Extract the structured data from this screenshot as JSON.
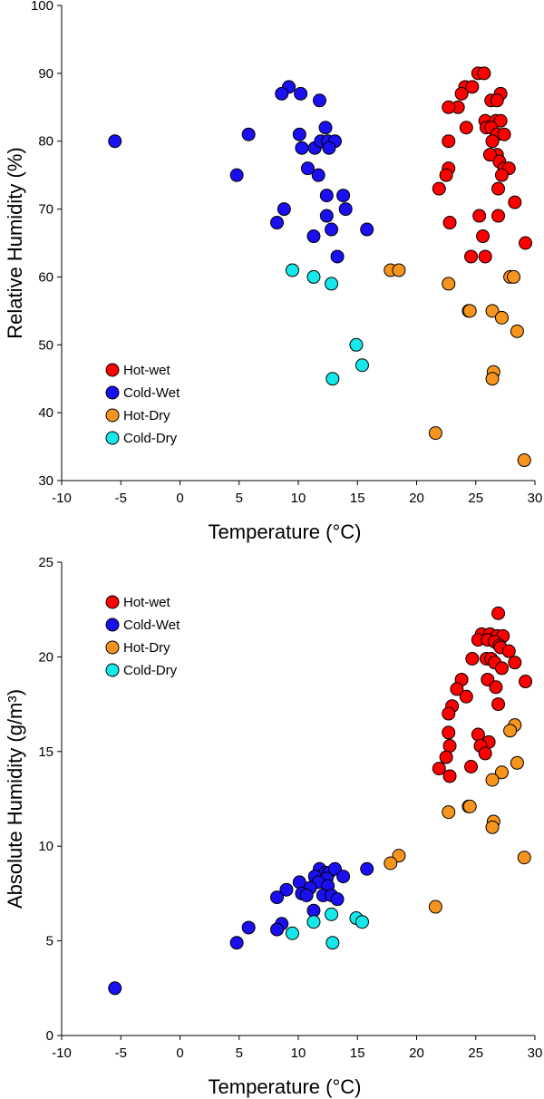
{
  "colors": {
    "Hot-wet": "#ff0000",
    "Cold-Wet": "#1a0ff0",
    "Hot-Dry": "#f7941d",
    "Cold-Dry": "#14e8ea"
  },
  "chart_data": [
    {
      "type": "scatter",
      "xlabel": "Temperature (°C)",
      "ylabel": "Relative Humidity (%)",
      "xlim": [
        -10,
        30
      ],
      "ylim": [
        30,
        100
      ],
      "xticks": [
        -10,
        -5,
        0,
        5,
        10,
        15,
        20,
        25,
        30
      ],
      "yticks": [
        30,
        40,
        50,
        60,
        70,
        80,
        90,
        100
      ],
      "legend_position": "bottom-left",
      "series": [
        {
          "name": "Hot-wet",
          "points": [
            [
              25.2,
              90
            ],
            [
              25.7,
              90
            ],
            [
              24.1,
              88
            ],
            [
              24.7,
              88
            ],
            [
              23.8,
              87
            ],
            [
              27.1,
              87
            ],
            [
              23.5,
              85
            ],
            [
              22.7,
              85
            ],
            [
              26.3,
              86
            ],
            [
              26.8,
              86
            ],
            [
              25.8,
              83
            ],
            [
              26.7,
              83
            ],
            [
              27.1,
              83
            ],
            [
              24.2,
              82
            ],
            [
              25.9,
              82
            ],
            [
              26.3,
              82
            ],
            [
              26.8,
              81
            ],
            [
              27.4,
              81
            ],
            [
              26.4,
              80
            ],
            [
              22.7,
              80
            ],
            [
              26.8,
              78
            ],
            [
              26.2,
              78
            ],
            [
              27,
              77
            ],
            [
              27.4,
              76
            ],
            [
              27.8,
              76
            ],
            [
              22.7,
              76
            ],
            [
              22.5,
              75
            ],
            [
              27.2,
              75
            ],
            [
              21.9,
              73
            ],
            [
              26.9,
              73
            ],
            [
              28.3,
              71
            ],
            [
              25.3,
              69
            ],
            [
              26.9,
              69
            ],
            [
              22.8,
              68
            ],
            [
              25.6,
              66
            ],
            [
              29.2,
              65
            ],
            [
              24.6,
              63
            ],
            [
              25.8,
              63
            ]
          ]
        },
        {
          "name": "Cold-Wet",
          "points": [
            [
              -5.5,
              80
            ],
            [
              9.2,
              88
            ],
            [
              8.6,
              87
            ],
            [
              10.2,
              87
            ],
            [
              11.8,
              86
            ],
            [
              5.8,
              81
            ],
            [
              10.1,
              81
            ],
            [
              12.3,
              82
            ],
            [
              11.4,
              79
            ],
            [
              11.9,
              80
            ],
            [
              12.5,
              80
            ],
            [
              13.1,
              80
            ],
            [
              10.3,
              79
            ],
            [
              12.6,
              79
            ],
            [
              10.8,
              76
            ],
            [
              11.7,
              75
            ],
            [
              4.8,
              75
            ],
            [
              12.4,
              72
            ],
            [
              13.8,
              72
            ],
            [
              8.8,
              70
            ],
            [
              14,
              70
            ],
            [
              12.4,
              69
            ],
            [
              8.2,
              68
            ],
            [
              12.8,
              67
            ],
            [
              15.8,
              67
            ],
            [
              11.3,
              66
            ],
            [
              13.3,
              63
            ]
          ]
        },
        {
          "name": "Hot-Dry",
          "points": [
            [
              17.8,
              61
            ],
            [
              18.5,
              61
            ],
            [
              22.7,
              59
            ],
            [
              27.9,
              60
            ],
            [
              28.2,
              60
            ],
            [
              24.4,
              55
            ],
            [
              24.5,
              55
            ],
            [
              26.4,
              55
            ],
            [
              27.2,
              54
            ],
            [
              28.5,
              52
            ],
            [
              26.5,
              46
            ],
            [
              26.4,
              45
            ],
            [
              21.6,
              37
            ],
            [
              29.1,
              33
            ]
          ]
        },
        {
          "name": "Cold-Dry",
          "points": [
            [
              9.5,
              61
            ],
            [
              11.3,
              60
            ],
            [
              12.8,
              59
            ],
            [
              14.9,
              50
            ],
            [
              15.4,
              47
            ],
            [
              12.9,
              45
            ]
          ]
        }
      ]
    },
    {
      "type": "scatter",
      "xlabel": "Temperature (°C)",
      "ylabel": "Absolute Humidity (g/m³)",
      "xlim": [
        -10,
        30
      ],
      "ylim": [
        0,
        25
      ],
      "xticks": [
        -10,
        -5,
        0,
        5,
        10,
        15,
        20,
        25,
        30
      ],
      "yticks": [
        0,
        5,
        10,
        15,
        20,
        25
      ],
      "legend_position": "top-left",
      "series": [
        {
          "name": "Hot-wet",
          "points": [
            [
              26.9,
              22.3
            ],
            [
              25.5,
              21.2
            ],
            [
              26.2,
              21.2
            ],
            [
              26.8,
              21.1
            ],
            [
              27.3,
              21.1
            ],
            [
              25.2,
              20.9
            ],
            [
              26,
              20.9
            ],
            [
              26.6,
              20.8
            ],
            [
              27,
              20.6
            ],
            [
              27.1,
              20.5
            ],
            [
              27.8,
              20.3
            ],
            [
              24.7,
              19.9
            ],
            [
              25.9,
              19.9
            ],
            [
              26.3,
              19.9
            ],
            [
              26.6,
              19.7
            ],
            [
              28.3,
              19.7
            ],
            [
              27.2,
              19.4
            ],
            [
              26,
              18.8
            ],
            [
              29.2,
              18.7
            ],
            [
              23.8,
              18.8
            ],
            [
              23.4,
              18.3
            ],
            [
              26.7,
              18.4
            ],
            [
              24.2,
              17.9
            ],
            [
              26.9,
              17.5
            ],
            [
              23,
              17.4
            ],
            [
              22.7,
              17
            ],
            [
              22.7,
              16
            ],
            [
              25.2,
              15.9
            ],
            [
              26.1,
              15.5
            ],
            [
              25.4,
              15.3
            ],
            [
              22.8,
              15.3
            ],
            [
              25.8,
              14.9
            ],
            [
              22.5,
              14.7
            ],
            [
              24.6,
              14.2
            ],
            [
              21.9,
              14.1
            ],
            [
              22.8,
              13.7
            ]
          ]
        },
        {
          "name": "Cold-Wet",
          "points": [
            [
              11.8,
              8.8
            ],
            [
              12.3,
              8.6
            ],
            [
              12.6,
              8.6
            ],
            [
              13.1,
              8.8
            ],
            [
              15.8,
              8.8
            ],
            [
              11.4,
              8.4
            ],
            [
              13.8,
              8.4
            ],
            [
              12.4,
              8.3
            ],
            [
              10.1,
              8.1
            ],
            [
              11.7,
              8.1
            ],
            [
              11,
              7.8
            ],
            [
              12.5,
              7.9
            ],
            [
              9,
              7.7
            ],
            [
              10.3,
              7.5
            ],
            [
              10.7,
              7.4
            ],
            [
              12.1,
              7.4
            ],
            [
              12.8,
              7.4
            ],
            [
              8.2,
              7.3
            ],
            [
              13.3,
              7.2
            ],
            [
              11.3,
              6.6
            ],
            [
              5.8,
              5.7
            ],
            [
              8.6,
              5.9
            ],
            [
              8.2,
              5.6
            ],
            [
              4.8,
              4.9
            ],
            [
              -5.5,
              2.5
            ]
          ]
        },
        {
          "name": "Hot-Dry",
          "points": [
            [
              18.5,
              9.5
            ],
            [
              17.8,
              9.1
            ],
            [
              29.1,
              9.4
            ],
            [
              21.6,
              6.8
            ],
            [
              28.3,
              16.4
            ],
            [
              27.9,
              16.1
            ],
            [
              28.5,
              14.4
            ],
            [
              27.2,
              13.9
            ],
            [
              26.4,
              13.5
            ],
            [
              24.4,
              12.1
            ],
            [
              24.5,
              12.1
            ],
            [
              22.7,
              11.8
            ],
            [
              26.5,
              11.3
            ],
            [
              26.4,
              11
            ]
          ]
        },
        {
          "name": "Cold-Dry",
          "points": [
            [
              12.8,
              6.4
            ],
            [
              14.9,
              6.2
            ],
            [
              15.4,
              6
            ],
            [
              11.3,
              6
            ],
            [
              9.5,
              5.4
            ],
            [
              12.9,
              4.9
            ]
          ]
        }
      ]
    }
  ]
}
